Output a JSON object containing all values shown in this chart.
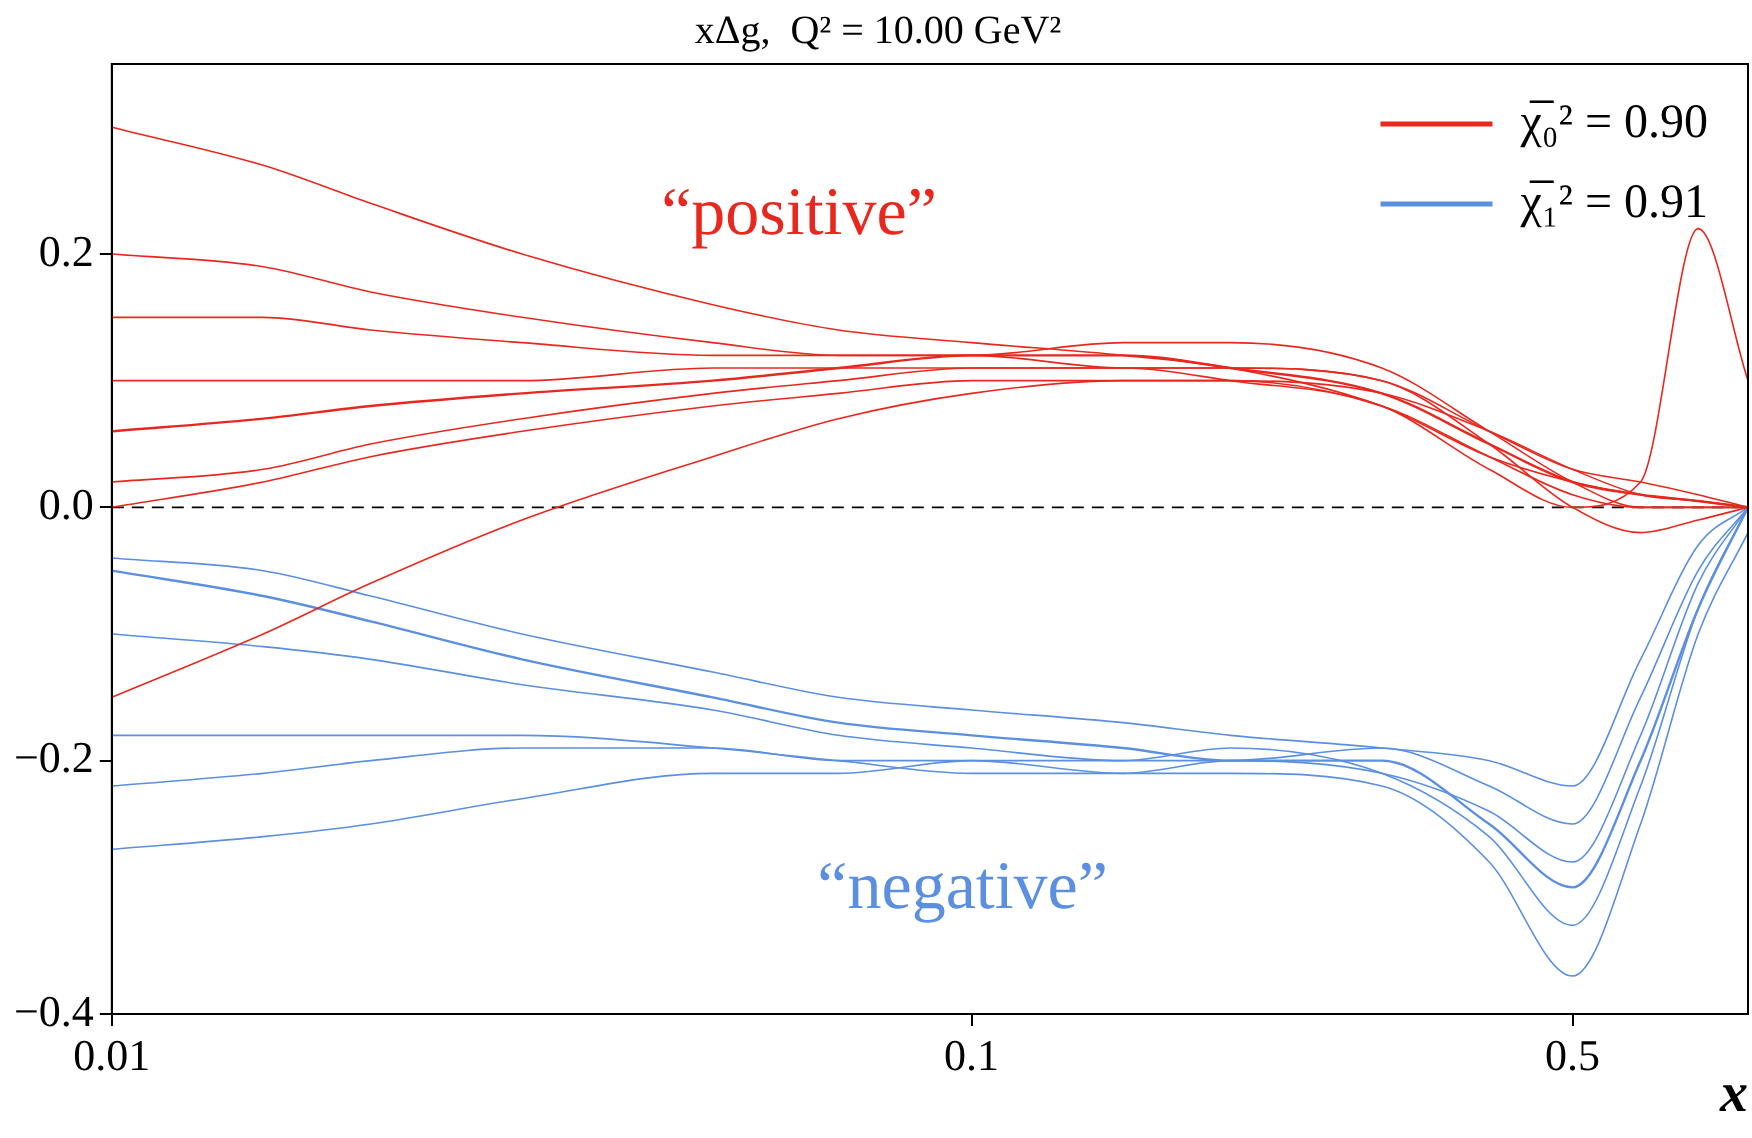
{
  "chart_data": {
    "type": "line",
    "title": "xΔg,  Q² = 10.00 GeV²",
    "xlabel": "x",
    "log": "x",
    "legend": "top right",
    "grid": false,
    "marker": "none",
    "line_style": "solid",
    "xlim": [
      0.01,
      0.8
    ],
    "xticks": [
      0.01,
      0.1,
      0.5
    ],
    "ylim": [
      -0.4,
      0.35
    ],
    "yticks": [
      {
        "value": -0.4,
        "label": "−0.4"
      },
      {
        "value": -0.2,
        "label": "−0.2"
      },
      {
        "value": 0,
        "label": "0.0"
      },
      {
        "value": 0.2,
        "label": "0.2"
      }
    ],
    "x": [
      0.01,
      0.015,
      0.02,
      0.03,
      0.05,
      0.07,
      0.1,
      0.15,
      0.2,
      0.3,
      0.4,
      0.5,
      0.6,
      0.7,
      0.8
    ],
    "series": [
      {
        "name": "χ̅₀² = 0.90",
        "color": "#e8281e",
        "values": [
          0.06,
          0.07,
          0.08,
          0.09,
          0.1,
          0.11,
          0.12,
          0.12,
          0.11,
          0.09,
          0.05,
          0.02,
          0.01,
          0.005,
          0
        ]
      },
      {
        "color": "#e8281e",
        "values": [
          0.3,
          0.27,
          0.24,
          0.2,
          0.16,
          0.14,
          0.13,
          0.12,
          0.11,
          0.08,
          0.04,
          0.02,
          0.01,
          0.005,
          0
        ]
      },
      {
        "color": "#e8281e",
        "values": [
          -0.15,
          -0.1,
          -0.06,
          -0.01,
          0.04,
          0.07,
          0.09,
          0.1,
          0.1,
          0.09,
          0.06,
          0.03,
          0.01,
          0.005,
          0
        ]
      },
      {
        "color": "#e8281e",
        "values": [
          0.15,
          0.15,
          0.14,
          0.13,
          0.12,
          0.12,
          0.12,
          0.11,
          0.11,
          0.1,
          0.06,
          0.03,
          0.02,
          0.01,
          0
        ]
      },
      {
        "color": "#e8281e",
        "values": [
          0.02,
          0.03,
          0.05,
          0.07,
          0.09,
          0.1,
          0.11,
          0.11,
          0.11,
          0.1,
          0.05,
          0,
          -0.02,
          -0.01,
          0
        ]
      },
      {
        "color": "#e8281e",
        "values": [
          0.1,
          0.1,
          0.1,
          0.1,
          0.11,
          0.11,
          0.11,
          0.11,
          0.1,
          0.08,
          0.03,
          0,
          0.02,
          0.22,
          0.1
        ]
      },
      {
        "color": "#e8281e",
        "values": [
          0.2,
          0.19,
          0.17,
          0.15,
          0.13,
          0.12,
          0.12,
          0.13,
          0.13,
          0.11,
          0.06,
          0.02,
          0,
          0,
          0
        ]
      },
      {
        "color": "#e8281e",
        "values": [
          0,
          0.02,
          0.04,
          0.06,
          0.08,
          0.09,
          0.1,
          0.1,
          0.1,
          0.08,
          0.04,
          0.01,
          0,
          0,
          0
        ]
      },
      {
        "name": "χ̅₁² = 0.91",
        "color": "#5b8fe0",
        "values": [
          -0.05,
          -0.07,
          -0.09,
          -0.12,
          -0.15,
          -0.17,
          -0.18,
          -0.19,
          -0.2,
          -0.2,
          -0.25,
          -0.3,
          -0.2,
          -0.08,
          0
        ]
      },
      {
        "color": "#5b8fe0",
        "values": [
          -0.27,
          -0.26,
          -0.25,
          -0.23,
          -0.21,
          -0.21,
          -0.2,
          -0.21,
          -0.21,
          -0.22,
          -0.28,
          -0.37,
          -0.25,
          -0.1,
          -0.02
        ]
      },
      {
        "color": "#5b8fe0",
        "values": [
          -0.1,
          -0.11,
          -0.12,
          -0.14,
          -0.16,
          -0.18,
          -0.19,
          -0.2,
          -0.2,
          -0.19,
          -0.22,
          -0.25,
          -0.15,
          -0.05,
          0
        ]
      },
      {
        "color": "#5b8fe0",
        "values": [
          -0.18,
          -0.18,
          -0.18,
          -0.18,
          -0.19,
          -0.2,
          -0.21,
          -0.21,
          -0.2,
          -0.21,
          -0.24,
          -0.28,
          -0.18,
          -0.06,
          0
        ]
      },
      {
        "color": "#5b8fe0",
        "values": [
          -0.04,
          -0.05,
          -0.07,
          -0.1,
          -0.13,
          -0.15,
          -0.16,
          -0.17,
          -0.18,
          -0.19,
          -0.2,
          -0.22,
          -0.12,
          -0.03,
          0
        ]
      },
      {
        "color": "#5b8fe0",
        "values": [
          -0.22,
          -0.21,
          -0.2,
          -0.19,
          -0.19,
          -0.2,
          -0.2,
          -0.2,
          -0.19,
          -0.21,
          -0.26,
          -0.33,
          -0.22,
          -0.08,
          0
        ]
      }
    ],
    "ref_lines": [
      {
        "axis": "y",
        "value": 0,
        "color": "#000000",
        "line_style": "dashed"
      }
    ],
    "annotations": [
      "“positive”",
      "“negative”"
    ]
  }
}
